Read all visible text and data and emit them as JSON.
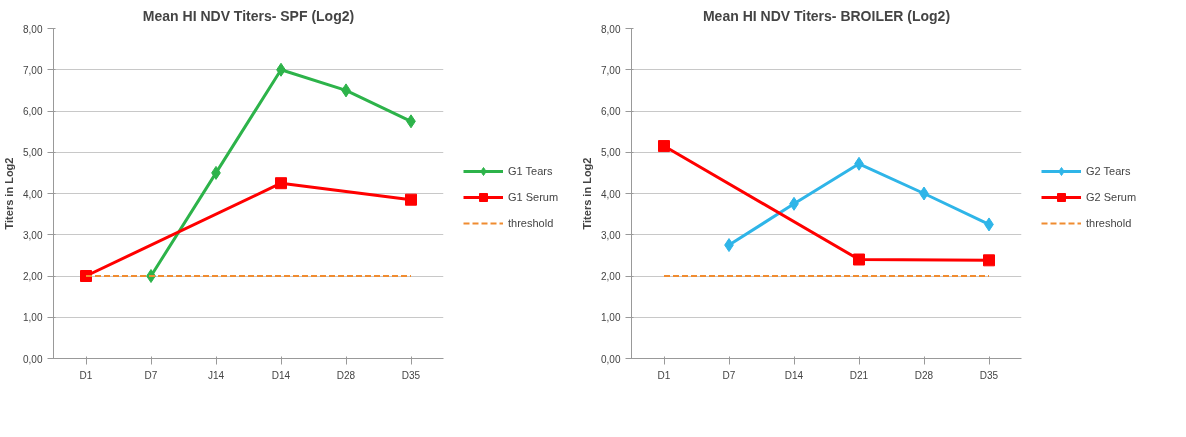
{
  "chart_data": [
    {
      "type": "line",
      "title": "Mean HI NDV Titers- SPF (Log2)",
      "ylabel": "Titers in Log2",
      "categories": [
        "D1",
        "D7",
        "J14",
        "D14",
        "D28",
        "D35"
      ],
      "series": [
        {
          "name": "G1 Tears",
          "color": "#2db34a",
          "marker": "diamond",
          "values": [
            null,
            2.0,
            4.5,
            7.0,
            6.5,
            5.75
          ]
        },
        {
          "name": "G1 Serum",
          "color": "#ff0000",
          "marker": "square",
          "values": [
            2.0,
            null,
            null,
            4.25,
            null,
            3.85
          ]
        },
        {
          "name": "threshold",
          "color": "#f08c30",
          "marker": "none",
          "line_style": "dashed",
          "values": [
            2,
            2,
            2,
            2,
            2,
            2
          ]
        }
      ],
      "ylim": [
        0,
        8
      ],
      "yticks": [
        {
          "value": 0,
          "label": "0,00"
        },
        {
          "value": 1,
          "label": "1,00"
        },
        {
          "value": 2,
          "label": "2,00"
        },
        {
          "value": 3,
          "label": "3,00"
        },
        {
          "value": 4,
          "label": "4,00"
        },
        {
          "value": 5,
          "label": "5,00"
        },
        {
          "value": 6,
          "label": "6,00"
        },
        {
          "value": 7,
          "label": "7,00"
        },
        {
          "value": 8,
          "label": "8,00"
        }
      ],
      "grid": "y",
      "legend": "right"
    },
    {
      "type": "line",
      "title": "Mean HI NDV Titers- BROILER (Log2)",
      "ylabel": "Titers in Log2",
      "categories": [
        "D1",
        "D7",
        "D14",
        "D21",
        "D28",
        "D35"
      ],
      "series": [
        {
          "name": "G2 Tears",
          "color": "#2fb5e8",
          "marker": "diamond",
          "values": [
            null,
            2.75,
            3.75,
            4.72,
            4.0,
            3.25
          ]
        },
        {
          "name": "G2 Serum",
          "color": "#ff0000",
          "marker": "square",
          "values": [
            5.15,
            null,
            null,
            2.4,
            null,
            2.38
          ]
        },
        {
          "name": "threshold",
          "color": "#f08c30",
          "marker": "none",
          "line_style": "dashed",
          "values": [
            2,
            2,
            2,
            2,
            2,
            2
          ]
        }
      ],
      "ylim": [
        0,
        8
      ],
      "yticks": [
        {
          "value": 0,
          "label": "0,00"
        },
        {
          "value": 1,
          "label": "1,00"
        },
        {
          "value": 2,
          "label": "2,00"
        },
        {
          "value": 3,
          "label": "3,00"
        },
        {
          "value": 4,
          "label": "4,00"
        },
        {
          "value": 5,
          "label": "5,00"
        },
        {
          "value": 6,
          "label": "6,00"
        },
        {
          "value": 7,
          "label": "7,00"
        },
        {
          "value": 8,
          "label": "8,00"
        }
      ],
      "grid": "y",
      "legend": "right"
    }
  ]
}
